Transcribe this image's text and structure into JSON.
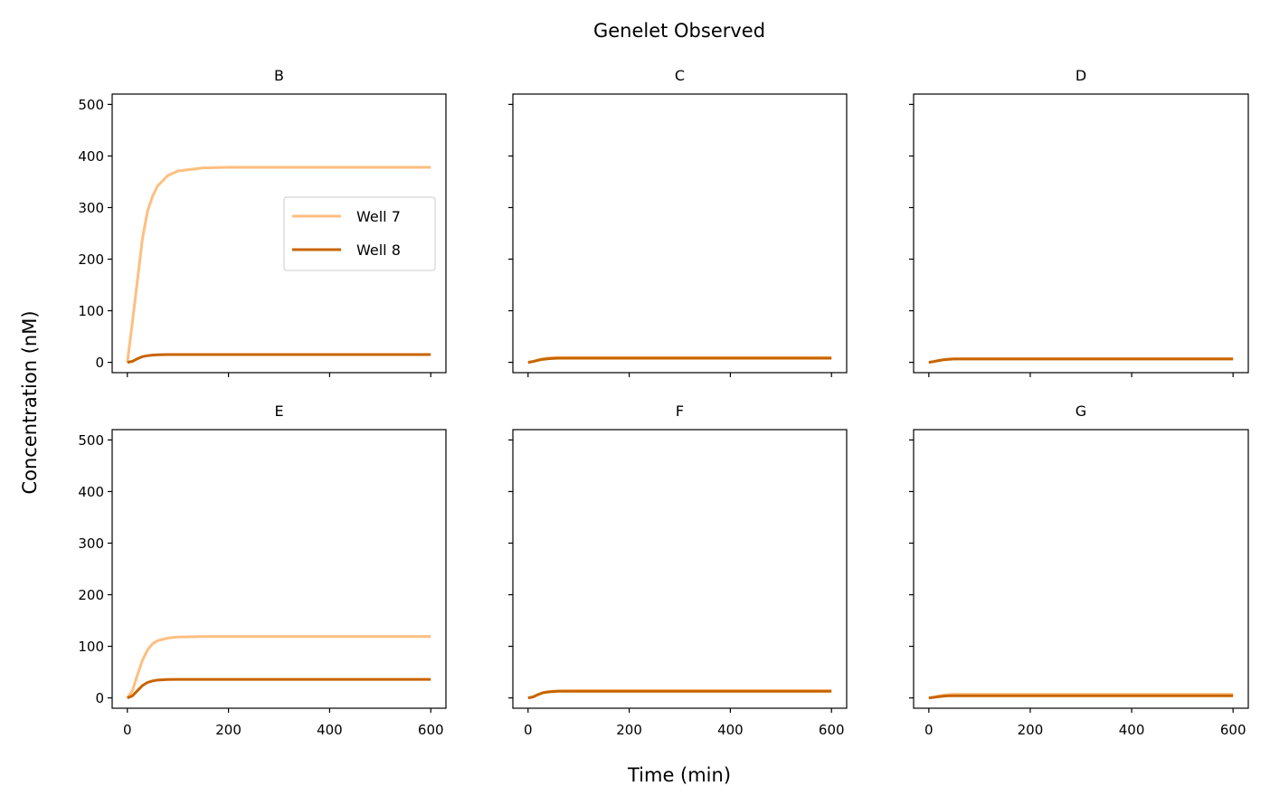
{
  "chart_data": {
    "type": "line",
    "title": "Genelet Observed",
    "xlabel": "Time (min)",
    "ylabel": "Concentration (nM)",
    "xlim": [
      -30,
      630
    ],
    "ylim": [
      -20,
      520
    ],
    "xticks": [
      0,
      200,
      400,
      600
    ],
    "yticks": [
      0,
      100,
      200,
      300,
      400,
      500
    ],
    "grid": false,
    "legend": {
      "panel": "B",
      "placement": "center-right",
      "entries": [
        "Well 7",
        "Well 8"
      ]
    },
    "series_colors": {
      "Well 7": "#fdbf80",
      "Well 8": "#c86400"
    },
    "panels": [
      {
        "name": "B",
        "series": [
          {
            "name": "Well 7",
            "x": [
              0,
              10,
              20,
              30,
              40,
              50,
              60,
              80,
              100,
              150,
              200,
              300,
              400,
              500,
              600
            ],
            "values": [
              0,
              78,
              160,
              240,
              293,
              322,
              342,
              362,
              371,
              377,
              378,
              378,
              378,
              378,
              378
            ]
          },
          {
            "name": "Well 8",
            "x": [
              0,
              10,
              20,
              30,
              40,
              50,
              60,
              80,
              100,
              200,
              300,
              400,
              500,
              600
            ],
            "values": [
              0,
              2,
              7,
              11,
              13,
              14,
              14.5,
              15,
              15,
              15,
              15,
              15,
              15,
              15
            ]
          }
        ]
      },
      {
        "name": "C",
        "series": [
          {
            "name": "Well 7",
            "x": [
              0,
              10,
              20,
              30,
              40,
              50,
              60,
              80,
              100,
              200,
              300,
              400,
              500,
              600
            ],
            "values": [
              0,
              2,
              5,
              7,
              8.5,
              9,
              9.5,
              9.5,
              9.5,
              9.5,
              9.5,
              9.5,
              9.5,
              9.5
            ]
          },
          {
            "name": "Well 8",
            "x": [
              0,
              10,
              20,
              30,
              40,
              50,
              60,
              80,
              100,
              200,
              300,
              400,
              500,
              600
            ],
            "values": [
              0,
              1.5,
              4,
              6,
              7,
              7.5,
              8,
              8,
              8,
              8,
              8,
              8,
              8,
              8
            ]
          }
        ]
      },
      {
        "name": "D",
        "series": [
          {
            "name": "Well 7",
            "x": [
              0,
              10,
              20,
              30,
              40,
              50,
              60,
              80,
              100,
              200,
              300,
              400,
              500,
              600
            ],
            "values": [
              0,
              1.5,
              4,
              5.5,
              6.5,
              7,
              7,
              7,
              7,
              7,
              7,
              7,
              7,
              7
            ]
          },
          {
            "name": "Well 8",
            "x": [
              0,
              10,
              20,
              30,
              40,
              50,
              60,
              80,
              100,
              200,
              300,
              400,
              500,
              600
            ],
            "values": [
              0,
              1.5,
              3.5,
              5,
              6,
              6.5,
              6.5,
              6.5,
              6.5,
              6.5,
              6.5,
              6.5,
              6.5,
              6.5
            ]
          }
        ]
      },
      {
        "name": "E",
        "series": [
          {
            "name": "Well 7",
            "x": [
              0,
              10,
              20,
              30,
              40,
              50,
              60,
              80,
              100,
              150,
              200,
              300,
              400,
              500,
              600
            ],
            "values": [
              0,
              14,
              45,
              73,
              93,
              105,
              111,
              116,
              118,
              119,
              119,
              119,
              119,
              119,
              119
            ]
          },
          {
            "name": "Well 8",
            "x": [
              0,
              10,
              20,
              30,
              40,
              50,
              60,
              80,
              100,
              200,
              300,
              400,
              500,
              600
            ],
            "values": [
              0,
              4,
              14,
              24,
              30,
              33,
              34.5,
              35.5,
              36,
              36,
              36,
              36,
              36,
              36
            ]
          }
        ]
      },
      {
        "name": "F",
        "series": [
          {
            "name": "Well 7",
            "x": [
              0,
              10,
              20,
              30,
              40,
              50,
              60,
              80,
              100,
              200,
              300,
              400,
              500,
              600
            ],
            "values": [
              0,
              2,
              7,
              10.5,
              12,
              13,
              13.5,
              14,
              14,
              14,
              14,
              14,
              14,
              14
            ]
          },
          {
            "name": "Well 8",
            "x": [
              0,
              10,
              20,
              30,
              40,
              50,
              60,
              80,
              100,
              200,
              300,
              400,
              500,
              600
            ],
            "values": [
              0,
              2,
              6.5,
              10,
              11.5,
              12.5,
              13,
              13,
              13,
              13,
              13,
              13,
              13,
              13
            ]
          }
        ]
      },
      {
        "name": "G",
        "series": [
          {
            "name": "Well 7",
            "x": [
              0,
              10,
              20,
              30,
              40,
              50,
              60,
              80,
              100,
              200,
              300,
              400,
              500,
              600
            ],
            "values": [
              0,
              1.5,
              4,
              5.5,
              6.5,
              7,
              7,
              7,
              7,
              7,
              7,
              7,
              7,
              7
            ]
          },
          {
            "name": "Well 8",
            "x": [
              0,
              10,
              20,
              30,
              40,
              50,
              60,
              80,
              100,
              200,
              300,
              400,
              500,
              600
            ],
            "values": [
              0,
              1,
              2.5,
              3.5,
              4,
              4,
              4,
              4,
              4,
              4,
              4,
              4,
              4,
              4
            ]
          }
        ]
      }
    ]
  }
}
